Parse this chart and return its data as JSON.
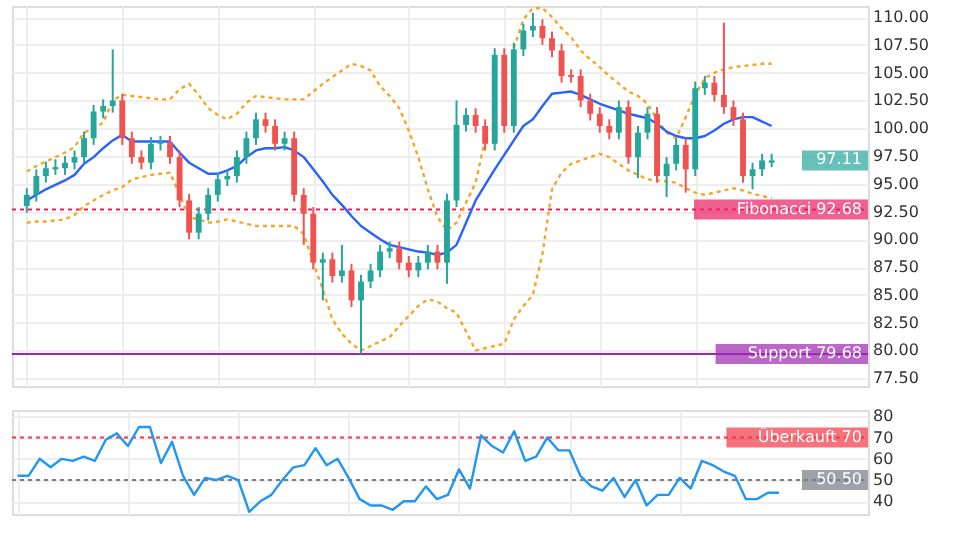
{
  "chart_data": [
    {
      "type": "candlestick",
      "categories": [
        null,
        null,
        null,
        null,
        null,
        null,
        null,
        null,
        null,
        null,
        null,
        null,
        null,
        null,
        null,
        null,
        null,
        null,
        null,
        null,
        null,
        null,
        null,
        null,
        null,
        null,
        null,
        null,
        null,
        null,
        null,
        null,
        null,
        null,
        null,
        null,
        null,
        null,
        null,
        null,
        null,
        null,
        null,
        null,
        null,
        null,
        null,
        null,
        null,
        null,
        null,
        null,
        null,
        null,
        null,
        null,
        null,
        null,
        null,
        null,
        null,
        null,
        null,
        null,
        null,
        null,
        null,
        null,
        null,
        null,
        null,
        null,
        null,
        null,
        null,
        null,
        null,
        null,
        null
      ],
      "ohlc": [
        [
          93.0,
          94.6,
          92.4,
          94.0
        ],
        [
          94.0,
          96.3,
          93.4,
          95.7
        ],
        [
          95.7,
          97.0,
          95.1,
          96.4
        ],
        [
          96.3,
          97.2,
          95.8,
          96.5
        ],
        [
          96.4,
          97.5,
          95.8,
          96.9
        ],
        [
          96.9,
          98.0,
          96.3,
          97.4
        ],
        [
          97.4,
          99.7,
          96.8,
          99.1
        ],
        [
          99.1,
          102.1,
          98.5,
          101.5
        ],
        [
          101.5,
          102.6,
          100.9,
          102.0
        ],
        [
          102.0,
          107.1,
          101.4,
          102.5
        ],
        [
          102.5,
          103.1,
          98.5,
          99.1
        ],
        [
          99.1,
          99.7,
          96.8,
          97.4
        ],
        [
          97.4,
          98.0,
          96.3,
          96.9
        ],
        [
          96.9,
          99.2,
          96.3,
          98.6
        ],
        [
          98.6,
          99.3,
          98.0,
          98.7
        ],
        [
          98.7,
          99.3,
          96.8,
          97.4
        ],
        [
          97.4,
          98.0,
          92.9,
          93.5
        ],
        [
          93.5,
          94.1,
          90.0,
          90.6
        ],
        [
          90.6,
          92.9,
          90.0,
          92.3
        ],
        [
          92.3,
          94.6,
          91.7,
          94.0
        ],
        [
          94.0,
          96.0,
          93.4,
          95.4
        ],
        [
          95.4,
          96.3,
          94.8,
          95.7
        ],
        [
          95.7,
          98.0,
          95.1,
          97.4
        ],
        [
          97.4,
          99.7,
          96.8,
          99.1
        ],
        [
          99.1,
          101.4,
          98.5,
          100.8
        ],
        [
          100.8,
          101.4,
          99.6,
          100.2
        ],
        [
          100.2,
          100.8,
          98.0,
          98.6
        ],
        [
          98.6,
          99.7,
          98.0,
          99.1
        ],
        [
          99.1,
          99.7,
          93.4,
          94.0
        ],
        [
          94.0,
          94.6,
          89.5,
          92.3
        ],
        [
          92.3,
          92.9,
          87.3,
          87.9
        ],
        [
          87.9,
          88.8,
          84.5,
          88.2
        ],
        [
          88.2,
          88.8,
          86.1,
          86.7
        ],
        [
          86.7,
          89.5,
          86.1,
          87.2
        ],
        [
          87.2,
          87.8,
          83.9,
          84.5
        ],
        [
          84.5,
          86.8,
          79.7,
          86.2
        ],
        [
          86.2,
          87.8,
          85.6,
          87.2
        ],
        [
          87.2,
          89.5,
          86.6,
          88.9
        ],
        [
          88.9,
          89.8,
          88.3,
          89.2
        ],
        [
          89.2,
          89.8,
          87.3,
          87.9
        ],
        [
          87.9,
          88.5,
          86.6,
          87.2
        ],
        [
          87.2,
          88.5,
          86.6,
          87.9
        ],
        [
          87.9,
          89.5,
          87.3,
          88.9
        ],
        [
          88.9,
          89.5,
          87.3,
          87.9
        ],
        [
          87.9,
          94.1,
          86.0,
          93.5
        ],
        [
          93.5,
          102.5,
          92.9,
          100.3
        ],
        [
          100.3,
          101.8,
          99.7,
          101.2
        ],
        [
          101.2,
          101.8,
          99.6,
          100.2
        ],
        [
          100.2,
          100.8,
          98.0,
          98.6
        ],
        [
          98.6,
          107.2,
          98.0,
          106.6
        ],
        [
          106.6,
          107.2,
          99.6,
          100.2
        ],
        [
          100.2,
          107.7,
          99.6,
          107.1
        ],
        [
          107.1,
          109.4,
          106.5,
          108.8
        ],
        [
          108.8,
          110.4,
          108.2,
          109.2
        ],
        [
          109.2,
          109.8,
          107.5,
          108.1
        ],
        [
          108.1,
          108.7,
          106.4,
          107.0
        ],
        [
          107.0,
          107.6,
          104.1,
          104.7
        ],
        [
          104.8,
          105.3,
          104.1,
          104.6
        ],
        [
          104.7,
          105.3,
          101.9,
          102.5
        ],
        [
          102.5,
          103.1,
          100.7,
          101.3
        ],
        [
          101.3,
          101.9,
          99.6,
          100.2
        ],
        [
          100.2,
          100.8,
          99.0,
          99.6
        ],
        [
          99.6,
          102.5,
          99.0,
          101.9
        ],
        [
          101.9,
          102.5,
          96.8,
          97.4
        ],
        [
          97.4,
          100.2,
          95.5,
          99.6
        ],
        [
          99.6,
          101.9,
          99.0,
          101.3
        ],
        [
          101.3,
          101.9,
          95.1,
          95.7
        ],
        [
          95.7,
          97.4,
          93.8,
          96.8
        ],
        [
          96.8,
          99.1,
          96.2,
          98.5
        ],
        [
          98.5,
          99.1,
          94.2,
          96.3
        ],
        [
          96.3,
          104.2,
          95.7,
          103.6
        ],
        [
          103.6,
          104.7,
          103.0,
          104.1
        ],
        [
          104.1,
          104.7,
          102.4,
          103.0
        ],
        [
          103.0,
          109.5,
          101.3,
          101.9
        ],
        [
          101.9,
          102.5,
          100.2,
          100.8
        ],
        [
          100.8,
          101.4,
          95.1,
          95.7
        ],
        [
          95.7,
          96.9,
          94.5,
          96.3
        ],
        [
          96.3,
          97.7,
          95.7,
          97.1
        ],
        [
          96.9,
          97.7,
          96.5,
          97.1
        ]
      ],
      "colors": [
        "#26a69a",
        "#26a69a",
        "#26a69a",
        "#26a69a",
        "#26a69a",
        "#26a69a",
        "#26a69a",
        "#26a69a",
        "#26a69a",
        "#26a69a",
        "#ef5350",
        "#ef5350",
        "#ef5350",
        "#26a69a",
        "#26a69a",
        "#ef5350",
        "#ef5350",
        "#ef5350",
        "#26a69a",
        "#26a69a",
        "#26a69a",
        "#26a69a",
        "#26a69a",
        "#26a69a",
        "#26a69a",
        "#ef5350",
        "#ef5350",
        "#26a69a",
        "#ef5350",
        "#ef5350",
        "#ef5350",
        "#26a69a",
        "#ef5350",
        "#26a69a",
        "#ef5350",
        "#26a69a",
        "#26a69a",
        "#26a69a",
        "#26a69a",
        "#ef5350",
        "#ef5350",
        "#26a69a",
        "#26a69a",
        "#ef5350",
        "#26a69a",
        "#26a69a",
        "#26a69a",
        "#ef5350",
        "#ef5350",
        "#26a69a",
        "#ef5350",
        "#26a69a",
        "#26a69a",
        "#26a69a",
        "#ef5350",
        "#ef5350",
        "#ef5350",
        "#ef5350",
        "#ef5350",
        "#ef5350",
        "#ef5350",
        "#ef5350",
        "#26a69a",
        "#ef5350",
        "#26a69a",
        "#26a69a",
        "#ef5350",
        "#26a69a",
        "#26a69a",
        "#ef5350",
        "#26a69a",
        "#26a69a",
        "#ef5350",
        "#ef5350",
        "#ef5350",
        "#ef5350",
        "#26a69a",
        "#26a69a",
        "#26a69a"
      ],
      "series": [
        {
          "type": "line",
          "color": "#f5a623",
          "line_style": "dotted",
          "values": [
            96.1,
            96.6,
            97.0,
            97.4,
            97.8,
            98.3,
            99.6,
            100.0,
            100.5,
            102.5,
            103.0,
            102.9,
            102.8,
            102.7,
            102.6,
            102.6,
            103.5,
            104.0,
            103.0,
            101.8,
            101.2,
            100.8,
            101.3,
            102.3,
            102.9,
            102.8,
            102.7,
            102.6,
            102.6,
            102.6,
            103.3,
            104.0,
            104.6,
            105.2,
            105.8,
            105.6,
            105.2,
            103.8,
            102.9,
            101.8,
            99.8,
            97.4,
            94.5,
            92.0,
            90.8,
            91.5,
            93.3,
            95.1,
            99.0,
            null,
            null,
            107.2,
            109.8,
            110.8,
            110.8,
            110.0,
            109.0,
            108.2,
            107.0,
            106.2,
            105.5,
            104.7,
            104.0,
            103.3,
            102.9,
            102.2,
            100.8,
            99.6,
            99.1,
            101.0,
            103.0,
            104.5,
            105.0,
            105.3,
            105.5,
            105.6,
            105.7,
            105.8,
            105.8
          ]
        },
        {
          "type": "line",
          "color": "#2962ff",
          "line_style": "solid",
          "values": [
            93.5,
            94.0,
            94.5,
            94.9,
            95.3,
            95.8,
            96.8,
            97.4,
            98.2,
            98.9,
            99.4,
            98.8,
            98.8,
            98.8,
            98.8,
            98.8,
            97.8,
            96.9,
            96.4,
            95.9,
            95.9,
            96.2,
            96.6,
            97.4,
            98.0,
            98.2,
            98.2,
            98.3,
            98.0,
            97.4,
            96.3,
            95.2,
            94.0,
            93.1,
            92.1,
            91.2,
            90.6,
            90.0,
            89.5,
            89.3,
            89.1,
            88.9,
            88.8,
            88.6,
            88.8,
            89.5,
            91.5,
            93.5,
            94.9,
            96.3,
            97.6,
            98.9,
            100.2,
            100.8,
            102.0,
            103.1,
            103.2,
            103.3,
            103.0,
            102.6,
            102.2,
            101.9,
            101.6,
            101.3,
            101.1,
            100.9,
            100.4,
            99.7,
            99.3,
            99.1,
            99.1,
            99.3,
            99.8,
            100.4,
            100.8,
            101.0,
            101.0,
            100.6,
            100.2
          ]
        },
        {
          "type": "line",
          "color": "#f5a623",
          "line_style": "dotted",
          "values": [
            91.5,
            91.6,
            91.6,
            91.7,
            91.8,
            92.2,
            93.0,
            93.5,
            94.0,
            94.4,
            94.7,
            95.4,
            95.6,
            95.8,
            95.9,
            96.0,
            94.0,
            92.0,
            91.8,
            91.5,
            91.6,
            91.8,
            91.6,
            91.4,
            91.2,
            91.2,
            91.2,
            91.2,
            91.2,
            90.5,
            87.9,
            85.5,
            82.8,
            81.5,
            80.6,
            80.0,
            80.4,
            80.8,
            81.2,
            82.2,
            83.1,
            84.0,
            84.6,
            84.4,
            83.8,
            83.4,
            81.7,
            80.0,
            80.2,
            80.4,
            80.6,
            82.8,
            84.0,
            85.0,
            88.7,
            94.5,
            96.0,
            96.8,
            97.1,
            97.4,
            97.7,
            97.4,
            96.8,
            96.2,
            95.8,
            95.4,
            95.3,
            95.2,
            95.1,
            94.6,
            94.2,
            94.0,
            94.2,
            94.4,
            94.6,
            94.4,
            94.1,
            93.9,
            93.7
          ]
        }
      ],
      "ylim": [
        76.8,
        111
      ],
      "yticks": [
        {
          "value": 77.5,
          "label": "77.50"
        },
        {
          "value": 80,
          "label": "80.00"
        },
        {
          "value": 82.5,
          "label": "82.50"
        },
        {
          "value": 85,
          "label": "85.00"
        },
        {
          "value": 87.5,
          "label": "87.50"
        },
        {
          "value": 90,
          "label": "90.00"
        },
        {
          "value": 92.5,
          "label": "92.50"
        },
        {
          "value": 95,
          "label": "95.00"
        },
        {
          "value": 97.5,
          "label": "97.50"
        },
        {
          "value": 100,
          "label": "100.00"
        },
        {
          "value": 102.5,
          "label": "102.50"
        },
        {
          "value": 105,
          "label": "105.00"
        },
        {
          "value": 107.5,
          "label": "107.50"
        },
        {
          "value": 110,
          "label": "110.00"
        }
      ],
      "ref_lines": [
        {
          "axis": "y",
          "value": 92.68,
          "label": "Fibonacci 92.68",
          "color": "#e91e63",
          "line_style": "dotted"
        },
        {
          "axis": "y",
          "value": 79.68,
          "label": "Support 79.68",
          "color": "#9c27b0",
          "line_style": "solid"
        }
      ],
      "annotations": [
        "97.11"
      ],
      "grid": true,
      "legend": false,
      "tick_labels": "y"
    },
    {
      "type": "line",
      "categories": [
        null,
        null,
        null,
        null,
        null,
        null,
        null,
        null,
        null,
        null,
        null,
        null,
        null,
        null,
        null,
        null,
        null,
        null,
        null,
        null,
        null,
        null,
        null,
        null,
        null,
        null,
        null,
        null,
        null,
        null,
        null,
        null,
        null,
        null,
        null,
        null,
        null,
        null,
        null,
        null,
        null,
        null,
        null,
        null,
        null,
        null,
        null,
        null,
        null,
        null,
        null,
        null,
        null,
        null,
        null,
        null,
        null,
        null,
        null,
        null,
        null,
        null,
        null,
        null,
        null,
        null,
        null,
        null,
        null,
        null
      ],
      "series": [
        {
          "color": "#2196f3",
          "values": [
            52,
            52,
            60,
            56,
            60,
            59,
            61,
            59,
            69,
            72,
            66,
            75,
            75,
            58,
            68,
            52,
            43,
            51,
            50,
            52,
            50,
            35,
            40,
            43,
            50,
            56,
            57,
            65,
            57,
            60,
            51,
            41,
            38,
            38,
            36,
            40,
            40,
            47,
            41,
            43,
            55,
            46,
            71,
            66,
            63,
            73,
            59,
            61,
            70,
            64,
            64,
            52,
            47,
            45,
            51,
            42,
            50,
            38,
            43,
            43,
            51,
            46,
            59,
            57,
            54,
            52,
            41,
            41,
            44,
            44
          ]
        }
      ],
      "ylim": [
        34,
        83
      ],
      "yticks": [
        40,
        50,
        60,
        70,
        80
      ],
      "ref_lines": [
        {
          "axis": "y",
          "value": 70,
          "label": "Überkauft 70",
          "color": "#f23645",
          "line_style": "dotted"
        },
        {
          "axis": "y",
          "value": 50,
          "label": "50 50",
          "color": "#787b86",
          "line_style": "dotted"
        }
      ],
      "grid": true,
      "legend": false,
      "tick_labels": "y"
    }
  ]
}
